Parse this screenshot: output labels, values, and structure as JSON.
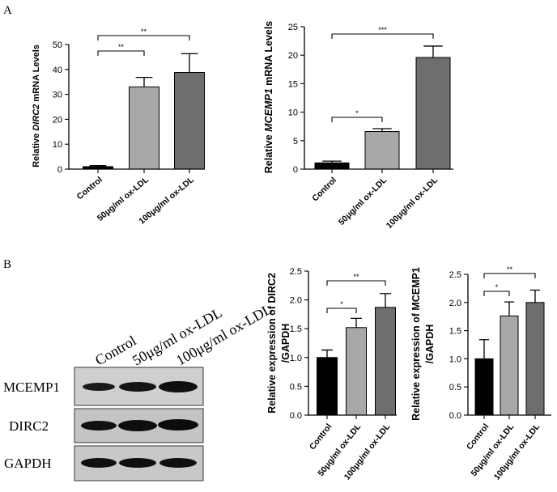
{
  "panel_labels": {
    "a": "A",
    "b": "B"
  },
  "blot": {
    "lanes": [
      "Control",
      "50μg/ml ox-LDL",
      "100μg/ml ox-LDL"
    ],
    "rows": [
      "MCEMP1",
      "DIRC2",
      "GAPDH"
    ]
  },
  "chart_data": [
    {
      "id": "dirc2_mrna",
      "type": "bar",
      "ylabel_parts": [
        "Relative ",
        "DIRC2",
        " mRNA Levels"
      ],
      "categories": [
        "Control",
        "50μg/ml ox-LDL",
        "100μg/ml ox-LDL"
      ],
      "values": [
        1.0,
        33.0,
        38.8
      ],
      "errors": [
        0.4,
        3.8,
        7.5
      ],
      "colors": [
        "#000000",
        "#a8a8a8",
        "#6e6e6e"
      ],
      "ylim": [
        0,
        50
      ],
      "yticks": [
        0,
        10,
        20,
        30,
        40,
        50
      ],
      "yticklabels": [
        "0",
        "10",
        "20",
        "30",
        "40",
        "50"
      ],
      "significance": [
        {
          "from": 0,
          "to": 1,
          "label": "**"
        },
        {
          "from": 0,
          "to": 2,
          "label": "**"
        }
      ]
    },
    {
      "id": "mcemp1_mrna",
      "type": "bar",
      "ylabel_parts": [
        "Relative ",
        "MCEMP1",
        " mRNA Levels"
      ],
      "categories": [
        "Control",
        "50μg/ml ox-LDL",
        "100μg/ml ox-LDL"
      ],
      "values": [
        1.1,
        6.6,
        19.6
      ],
      "errors": [
        0.3,
        0.5,
        2.0
      ],
      "colors": [
        "#000000",
        "#a8a8a8",
        "#6e6e6e"
      ],
      "ylim": [
        0,
        25
      ],
      "yticks": [
        0,
        5,
        10,
        15,
        20,
        25
      ],
      "yticklabels": [
        "0",
        "5",
        "10",
        "15",
        "20",
        "25"
      ],
      "significance": [
        {
          "from": 0,
          "to": 1,
          "label": "*"
        },
        {
          "from": 0,
          "to": 2,
          "label": "***"
        }
      ]
    },
    {
      "id": "dirc2_protein",
      "type": "bar",
      "ylabel_lines": [
        "Relative expression of DIRC2",
        "/GAPDH"
      ],
      "categories": [
        "Control",
        "50μg/ml ox-LDL",
        "100μg/ml ox-LDL"
      ],
      "values": [
        1.0,
        1.52,
        1.87
      ],
      "errors": [
        0.13,
        0.16,
        0.24
      ],
      "colors": [
        "#000000",
        "#a8a8a8",
        "#6e6e6e"
      ],
      "ylim": [
        0,
        2.5
      ],
      "yticks": [
        0,
        0.5,
        1,
        1.5,
        2,
        2.5
      ],
      "yticklabels": [
        "0.0",
        "0.5",
        "1.0",
        "1.5",
        "2.0",
        "2.5"
      ],
      "significance": [
        {
          "from": 0,
          "to": 1,
          "label": "*"
        },
        {
          "from": 0,
          "to": 2,
          "label": "**"
        }
      ]
    },
    {
      "id": "mcemp1_protein",
      "type": "bar",
      "ylabel_lines": [
        "Relative expression of MCEMP1",
        "/GAPDH"
      ],
      "categories": [
        "Control",
        "50μg/ml ox-LDL",
        "100μg/ml ox-LDL"
      ],
      "values": [
        1.0,
        1.76,
        2.0
      ],
      "errors": [
        0.34,
        0.25,
        0.22
      ],
      "colors": [
        "#000000",
        "#a8a8a8",
        "#6e6e6e"
      ],
      "ylim": [
        0,
        2.5
      ],
      "yticks": [
        0,
        0.5,
        1,
        1.5,
        2,
        2.5
      ],
      "yticklabels": [
        "0.0",
        "0.5",
        "1.0",
        "1.5",
        "2.0",
        "2.5"
      ],
      "significance": [
        {
          "from": 0,
          "to": 1,
          "label": "*"
        },
        {
          "from": 0,
          "to": 2,
          "label": "**"
        }
      ]
    }
  ]
}
